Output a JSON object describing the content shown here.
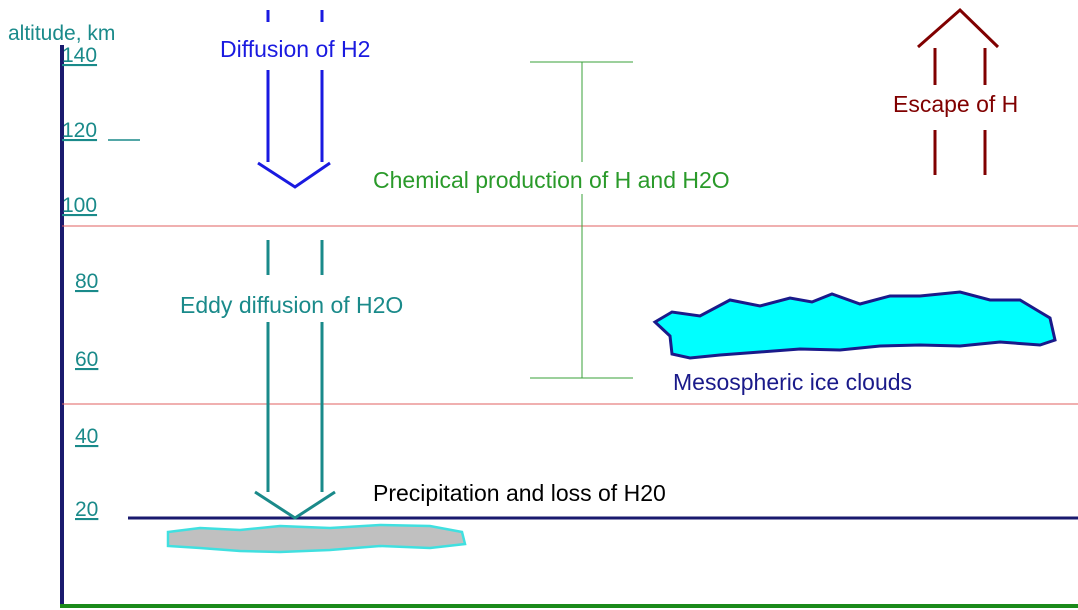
{
  "axis": {
    "label": "altitude, km",
    "ticks": [
      "140",
      "120",
      "100",
      "80",
      "60",
      "40",
      "20"
    ]
  },
  "labels": {
    "diffusion_h2": "Diffusion of H2",
    "chemical": "Chemical production of H and H2O",
    "escape": "Escape of H",
    "eddy": "Eddy diffusion of H2O",
    "ice_clouds": "Mesospheric ice clouds",
    "precipitation": "Precipitation and loss of H20"
  }
}
